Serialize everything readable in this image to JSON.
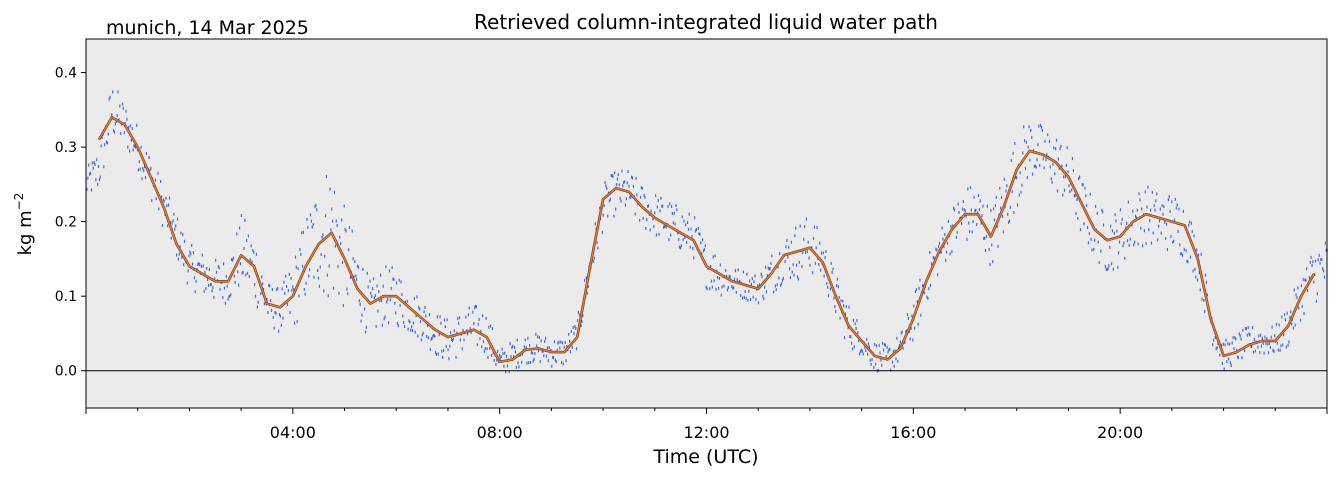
{
  "chart_data": {
    "type": "line",
    "title": "Retrieved column-integrated liquid water path",
    "location_date": "munich, 14 Mar 2025",
    "xlabel": "Time (UTC)",
    "ylabel": "kg m",
    "ylabel_superscript": "−2",
    "x_unit": "hours UTC",
    "xlim": [
      0,
      24
    ],
    "ylim": [
      -0.05,
      0.445
    ],
    "x_ticks": [
      {
        "value": 4,
        "label": "04:00"
      },
      {
        "value": 8,
        "label": "08:00"
      },
      {
        "value": 12,
        "label": "12:00"
      },
      {
        "value": 16,
        "label": "16:00"
      },
      {
        "value": 20,
        "label": "20:00"
      }
    ],
    "y_ticks": [
      {
        "value": 0.0,
        "label": "0.0"
      },
      {
        "value": 0.1,
        "label": "0.1"
      },
      {
        "value": 0.2,
        "label": "0.2"
      },
      {
        "value": 0.3,
        "label": "0.3"
      },
      {
        "value": 0.4,
        "label": "0.4"
      }
    ],
    "reference_line": 0.0,
    "grid": false,
    "background": "#ebebeb",
    "series": [
      {
        "style": "scatter",
        "color": "#4169e1",
        "x": [
          0.0,
          0.25,
          0.5,
          0.75,
          1.0,
          1.25,
          1.5,
          1.75,
          2.0,
          2.25,
          2.5,
          2.75,
          3.0,
          3.25,
          3.5,
          3.75,
          4.0,
          4.25,
          4.5,
          4.75,
          5.0,
          5.25,
          5.5,
          5.75,
          6.0,
          6.25,
          6.5,
          6.75,
          7.0,
          7.25,
          7.5,
          7.75,
          8.0,
          8.25,
          8.5,
          8.75,
          9.0,
          9.25,
          9.5,
          9.75,
          10.0,
          10.25,
          10.5,
          10.75,
          11.0,
          11.25,
          11.5,
          11.75,
          12.0,
          12.25,
          12.5,
          12.75,
          13.0,
          13.25,
          13.5,
          13.75,
          14.0,
          14.25,
          14.5,
          14.75,
          15.0,
          15.25,
          15.5,
          15.75,
          16.0,
          16.25,
          16.5,
          16.75,
          17.0,
          17.25,
          17.5,
          17.75,
          18.0,
          18.25,
          18.5,
          18.75,
          19.0,
          19.25,
          19.5,
          19.75,
          20.0,
          20.25,
          20.5,
          20.75,
          21.0,
          21.25,
          21.5,
          21.75,
          22.0,
          22.25,
          22.5,
          22.75,
          23.0,
          23.25,
          23.5,
          23.75,
          24.0
        ],
        "y": [
          0.25,
          0.27,
          0.35,
          0.33,
          0.3,
          0.26,
          0.22,
          0.18,
          0.14,
          0.13,
          0.12,
          0.12,
          0.16,
          0.14,
          0.09,
          0.08,
          0.1,
          0.15,
          0.18,
          0.19,
          0.15,
          0.12,
          0.08,
          0.1,
          0.1,
          0.08,
          0.07,
          0.05,
          0.04,
          0.05,
          0.06,
          0.05,
          0.01,
          0.02,
          0.03,
          0.03,
          0.025,
          0.025,
          0.05,
          0.14,
          0.22,
          0.24,
          0.24,
          0.22,
          0.21,
          0.2,
          0.19,
          0.18,
          0.14,
          0.13,
          0.12,
          0.115,
          0.11,
          0.13,
          0.15,
          0.16,
          0.17,
          0.15,
          0.1,
          0.06,
          0.04,
          0.02,
          0.015,
          0.03,
          0.07,
          0.12,
          0.16,
          0.19,
          0.21,
          0.21,
          0.18,
          0.22,
          0.27,
          0.3,
          0.29,
          0.28,
          0.26,
          0.22,
          0.19,
          0.17,
          0.18,
          0.2,
          0.21,
          0.2,
          0.2,
          0.19,
          0.15,
          0.07,
          0.02,
          0.03,
          0.04,
          0.04,
          0.04,
          0.06,
          0.1,
          0.13,
          0.14
        ],
        "spread": [
          0.02,
          0.03,
          0.04,
          0.03,
          0.03,
          0.03,
          0.03,
          0.03,
          0.03,
          0.03,
          0.03,
          0.03,
          0.05,
          0.05,
          0.03,
          0.03,
          0.05,
          0.06,
          0.08,
          0.1,
          0.07,
          0.05,
          0.04,
          0.04,
          0.04,
          0.03,
          0.03,
          0.03,
          0.03,
          0.03,
          0.03,
          0.03,
          0.02,
          0.02,
          0.02,
          0.02,
          0.02,
          0.02,
          0.02,
          0.03,
          0.03,
          0.03,
          0.03,
          0.03,
          0.03,
          0.03,
          0.03,
          0.03,
          0.03,
          0.03,
          0.02,
          0.02,
          0.02,
          0.03,
          0.03,
          0.04,
          0.04,
          0.03,
          0.03,
          0.03,
          0.02,
          0.02,
          0.02,
          0.02,
          0.03,
          0.03,
          0.03,
          0.03,
          0.04,
          0.04,
          0.04,
          0.05,
          0.05,
          0.04,
          0.04,
          0.04,
          0.04,
          0.04,
          0.04,
          0.04,
          0.04,
          0.04,
          0.04,
          0.04,
          0.04,
          0.04,
          0.03,
          0.03,
          0.02,
          0.02,
          0.02,
          0.02,
          0.02,
          0.03,
          0.03,
          0.04,
          0.04
        ]
      },
      {
        "style": "line",
        "color": "#e07b39",
        "x": [
          0.25,
          0.5,
          0.75,
          1.0,
          1.25,
          1.5,
          1.75,
          2.0,
          2.25,
          2.5,
          2.75,
          3.0,
          3.25,
          3.5,
          3.75,
          4.0,
          4.25,
          4.5,
          4.75,
          5.0,
          5.25,
          5.5,
          5.75,
          6.0,
          6.25,
          6.5,
          6.75,
          7.0,
          7.25,
          7.5,
          7.75,
          8.0,
          8.25,
          8.5,
          8.75,
          9.0,
          9.25,
          9.5,
          9.75,
          10.0,
          10.25,
          10.5,
          10.75,
          11.0,
          11.25,
          11.5,
          11.75,
          12.0,
          12.25,
          12.5,
          12.75,
          13.0,
          13.25,
          13.5,
          13.75,
          14.0,
          14.25,
          14.5,
          14.75,
          15.0,
          15.25,
          15.5,
          15.75,
          16.0,
          16.25,
          16.5,
          16.75,
          17.0,
          17.25,
          17.5,
          17.75,
          18.0,
          18.25,
          18.5,
          18.75,
          19.0,
          19.25,
          19.5,
          19.75,
          20.0,
          20.25,
          20.5,
          20.75,
          21.0,
          21.25,
          21.5,
          21.75,
          22.0,
          22.25,
          22.5,
          22.75,
          23.0,
          23.25,
          23.5,
          23.75
        ],
        "y": [
          0.31,
          0.34,
          0.33,
          0.3,
          0.26,
          0.22,
          0.17,
          0.14,
          0.13,
          0.12,
          0.12,
          0.155,
          0.14,
          0.09,
          0.085,
          0.1,
          0.14,
          0.17,
          0.185,
          0.15,
          0.11,
          0.09,
          0.1,
          0.1,
          0.085,
          0.07,
          0.055,
          0.045,
          0.05,
          0.055,
          0.045,
          0.012,
          0.015,
          0.028,
          0.03,
          0.025,
          0.025,
          0.045,
          0.14,
          0.23,
          0.245,
          0.24,
          0.22,
          0.205,
          0.195,
          0.185,
          0.175,
          0.14,
          0.13,
          0.12,
          0.115,
          0.11,
          0.13,
          0.155,
          0.16,
          0.165,
          0.145,
          0.1,
          0.06,
          0.04,
          0.02,
          0.015,
          0.03,
          0.07,
          0.12,
          0.16,
          0.19,
          0.21,
          0.21,
          0.18,
          0.22,
          0.27,
          0.295,
          0.29,
          0.28,
          0.26,
          0.225,
          0.19,
          0.175,
          0.18,
          0.2,
          0.21,
          0.205,
          0.2,
          0.195,
          0.15,
          0.07,
          0.02,
          0.025,
          0.035,
          0.04,
          0.04,
          0.06,
          0.1,
          0.13
        ]
      }
    ]
  }
}
